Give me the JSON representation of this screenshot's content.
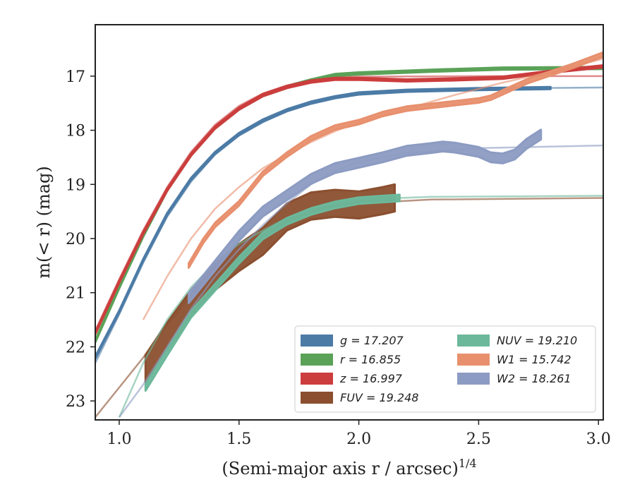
{
  "chart_data": {
    "type": "line",
    "xlabel": "(Semi-major axis r / arcsec)",
    "xlabel_exponent": "1/4",
    "ylabel": "m(< r) (mag)",
    "xlim": [
      0.9,
      3.02
    ],
    "ylim": [
      23.35,
      16.05
    ],
    "y_inverted": true,
    "xticks": [
      "1.0",
      "1.5",
      "2.0",
      "2.5",
      "3.0"
    ],
    "yticks": [
      "17",
      "18",
      "19",
      "20",
      "21",
      "22",
      "23"
    ],
    "grid": false,
    "legend_placement": "lower-right",
    "legend": [
      {
        "label": "g = 17.207",
        "color": "#4c7ba6"
      },
      {
        "label": "r = 16.855",
        "color": "#5aa258"
      },
      {
        "label": "z = 16.997",
        "color": "#cc3d3d"
      },
      {
        "label": "FUV = 19.248",
        "color": "#8b4f2f"
      },
      {
        "label": "NUV = 19.210",
        "color": "#6cb89b"
      },
      {
        "label": "W1 = 15.742",
        "color": "#e8906e"
      },
      {
        "label": "W2 = 18.261",
        "color": "#8c9bc2"
      }
    ],
    "series": [
      {
        "name": "g = 17.207",
        "color": "#4c7ba6",
        "model": [
          [
            0.9,
            22.3
          ],
          [
            1.0,
            21.4
          ],
          [
            1.1,
            20.45
          ],
          [
            1.2,
            19.6
          ],
          [
            1.3,
            18.95
          ],
          [
            1.4,
            18.45
          ],
          [
            1.5,
            18.1
          ],
          [
            1.6,
            17.85
          ],
          [
            1.7,
            17.65
          ],
          [
            1.8,
            17.5
          ],
          [
            1.9,
            17.4
          ],
          [
            2.0,
            17.33
          ],
          [
            2.2,
            17.27
          ],
          [
            2.5,
            17.23
          ],
          [
            3.02,
            17.21
          ]
        ],
        "data": [
          [
            0.9,
            22.2
          ],
          [
            1.0,
            21.35
          ],
          [
            1.1,
            20.4
          ],
          [
            1.2,
            19.55
          ],
          [
            1.3,
            18.9
          ],
          [
            1.4,
            18.42
          ],
          [
            1.5,
            18.07
          ],
          [
            1.6,
            17.82
          ],
          [
            1.7,
            17.63
          ],
          [
            1.8,
            17.49
          ],
          [
            1.9,
            17.39
          ],
          [
            2.0,
            17.32
          ],
          [
            2.2,
            17.27
          ],
          [
            2.5,
            17.24
          ],
          [
            2.8,
            17.22
          ]
        ],
        "band": 0.04
      },
      {
        "name": "r = 16.855",
        "color": "#5aa258",
        "model": [
          [
            0.9,
            21.9
          ],
          [
            1.0,
            20.9
          ],
          [
            1.1,
            19.95
          ],
          [
            1.2,
            19.1
          ],
          [
            1.3,
            18.45
          ],
          [
            1.4,
            17.95
          ],
          [
            1.5,
            17.6
          ],
          [
            1.6,
            17.35
          ],
          [
            1.7,
            17.2
          ],
          [
            1.8,
            17.08
          ],
          [
            1.9,
            17.0
          ],
          [
            2.0,
            16.95
          ],
          [
            2.3,
            16.9
          ],
          [
            2.6,
            16.87
          ],
          [
            3.02,
            16.85
          ]
        ],
        "data": [
          [
            0.9,
            21.9
          ],
          [
            1.0,
            20.9
          ],
          [
            1.1,
            19.95
          ],
          [
            1.2,
            19.1
          ],
          [
            1.3,
            18.45
          ],
          [
            1.4,
            17.95
          ],
          [
            1.5,
            17.6
          ],
          [
            1.6,
            17.35
          ],
          [
            1.7,
            17.2
          ],
          [
            1.8,
            17.08
          ],
          [
            1.9,
            16.98
          ],
          [
            2.0,
            16.95
          ],
          [
            2.3,
            16.9
          ],
          [
            2.6,
            16.86
          ],
          [
            3.02,
            16.85
          ]
        ],
        "band": 0.04
      },
      {
        "name": "z = 16.997",
        "color": "#cc3d3d",
        "model": [
          [
            0.9,
            21.7
          ],
          [
            1.0,
            20.75
          ],
          [
            1.1,
            19.85
          ],
          [
            1.2,
            19.05
          ],
          [
            1.3,
            18.4
          ],
          [
            1.4,
            17.9
          ],
          [
            1.5,
            17.55
          ],
          [
            1.6,
            17.32
          ],
          [
            1.7,
            17.17
          ],
          [
            1.8,
            17.08
          ],
          [
            1.9,
            17.03
          ],
          [
            2.0,
            17.01
          ],
          [
            2.5,
            17.0
          ],
          [
            3.02,
            17.0
          ]
        ],
        "data": [
          [
            0.9,
            21.75
          ],
          [
            1.0,
            20.8
          ],
          [
            1.1,
            19.9
          ],
          [
            1.2,
            19.1
          ],
          [
            1.3,
            18.45
          ],
          [
            1.4,
            17.95
          ],
          [
            1.5,
            17.6
          ],
          [
            1.6,
            17.35
          ],
          [
            1.7,
            17.2
          ],
          [
            1.8,
            17.1
          ],
          [
            1.9,
            17.05
          ],
          [
            2.0,
            17.05
          ],
          [
            2.2,
            17.08
          ],
          [
            2.4,
            17.06
          ],
          [
            2.6,
            17.03
          ],
          [
            2.8,
            16.92
          ],
          [
            3.02,
            16.82
          ]
        ],
        "band": 0.04
      },
      {
        "name": "FUV = 19.248",
        "color": "#8b4f2f",
        "model": [
          [
            0.9,
            23.3
          ],
          [
            1.0,
            22.75
          ],
          [
            1.1,
            22.2
          ],
          [
            1.2,
            21.6
          ],
          [
            1.3,
            21.05
          ],
          [
            1.4,
            20.6
          ],
          [
            1.5,
            20.25
          ],
          [
            1.6,
            19.95
          ],
          [
            1.7,
            19.7
          ],
          [
            1.8,
            19.55
          ],
          [
            1.9,
            19.43
          ],
          [
            2.0,
            19.35
          ],
          [
            2.3,
            19.28
          ],
          [
            3.02,
            19.25
          ]
        ],
        "data": [
          [
            1.11,
            22.4
          ],
          [
            1.2,
            21.8
          ],
          [
            1.3,
            21.2
          ],
          [
            1.4,
            20.7
          ],
          [
            1.5,
            20.35
          ],
          [
            1.6,
            20.05
          ],
          [
            1.7,
            19.6
          ],
          [
            1.8,
            19.4
          ],
          [
            1.9,
            19.35
          ],
          [
            2.0,
            19.38
          ],
          [
            2.1,
            19.3
          ],
          [
            2.15,
            19.25
          ]
        ],
        "band": 0.5
      },
      {
        "name": "NUV = 19.210",
        "color": "#6cb89b",
        "model": [
          [
            1.0,
            23.3
          ],
          [
            1.1,
            22.3
          ],
          [
            1.2,
            21.5
          ],
          [
            1.3,
            20.9
          ],
          [
            1.4,
            20.45
          ],
          [
            1.5,
            20.1
          ],
          [
            1.6,
            19.85
          ],
          [
            1.7,
            19.62
          ],
          [
            1.8,
            19.45
          ],
          [
            1.9,
            19.35
          ],
          [
            2.0,
            19.28
          ],
          [
            2.3,
            19.23
          ],
          [
            3.02,
            19.21
          ]
        ],
        "data": [
          [
            1.11,
            22.75
          ],
          [
            1.2,
            22.1
          ],
          [
            1.3,
            21.4
          ],
          [
            1.4,
            20.9
          ],
          [
            1.5,
            20.4
          ],
          [
            1.6,
            19.95
          ],
          [
            1.7,
            19.68
          ],
          [
            1.8,
            19.5
          ],
          [
            1.9,
            19.38
          ],
          [
            2.0,
            19.3
          ],
          [
            2.1,
            19.27
          ],
          [
            2.17,
            19.25
          ]
        ],
        "band": 0.12
      },
      {
        "name": "W1 = 15.742",
        "color": "#e8906e",
        "model": [
          [
            1.1,
            21.5
          ],
          [
            1.2,
            20.7
          ],
          [
            1.3,
            20.0
          ],
          [
            1.4,
            19.45
          ],
          [
            1.5,
            19.05
          ],
          [
            1.6,
            18.7
          ],
          [
            1.7,
            18.45
          ],
          [
            1.8,
            18.22
          ],
          [
            1.9,
            18.02
          ],
          [
            2.0,
            17.85
          ],
          [
            2.2,
            17.6
          ],
          [
            2.4,
            17.35
          ],
          [
            2.6,
            17.12
          ],
          [
            2.8,
            16.92
          ],
          [
            3.02,
            16.68
          ]
        ],
        "data": [
          [
            1.29,
            20.5
          ],
          [
            1.35,
            20.05
          ],
          [
            1.4,
            19.75
          ],
          [
            1.5,
            19.35
          ],
          [
            1.6,
            18.8
          ],
          [
            1.7,
            18.45
          ],
          [
            1.8,
            18.15
          ],
          [
            1.9,
            17.95
          ],
          [
            2.0,
            17.85
          ],
          [
            2.1,
            17.7
          ],
          [
            2.2,
            17.6
          ],
          [
            2.3,
            17.55
          ],
          [
            2.4,
            17.5
          ],
          [
            2.5,
            17.45
          ],
          [
            2.55,
            17.4
          ],
          [
            2.6,
            17.3
          ],
          [
            2.7,
            17.1
          ],
          [
            2.8,
            16.95
          ],
          [
            2.9,
            16.8
          ],
          [
            3.02,
            16.6
          ]
        ],
        "band": 0.08
      },
      {
        "name": "W2 = 18.261",
        "color": "#8c9bc2",
        "model": [
          [
            1.0,
            23.3
          ],
          [
            1.1,
            22.7
          ],
          [
            1.2,
            22.0
          ],
          [
            1.3,
            21.3
          ],
          [
            1.4,
            20.7
          ],
          [
            1.5,
            20.2
          ],
          [
            1.6,
            19.75
          ],
          [
            1.7,
            19.35
          ],
          [
            1.8,
            19.0
          ],
          [
            1.9,
            18.75
          ],
          [
            2.0,
            18.58
          ],
          [
            2.2,
            18.42
          ],
          [
            2.5,
            18.33
          ],
          [
            3.02,
            18.28
          ]
        ],
        "data": [
          [
            1.29,
            21.1
          ],
          [
            1.4,
            20.5
          ],
          [
            1.5,
            19.95
          ],
          [
            1.6,
            19.5
          ],
          [
            1.7,
            19.2
          ],
          [
            1.8,
            18.9
          ],
          [
            1.9,
            18.7
          ],
          [
            2.0,
            18.6
          ],
          [
            2.1,
            18.5
          ],
          [
            2.2,
            18.38
          ],
          [
            2.3,
            18.33
          ],
          [
            2.35,
            18.3
          ],
          [
            2.4,
            18.32
          ],
          [
            2.5,
            18.4
          ],
          [
            2.55,
            18.5
          ],
          [
            2.6,
            18.52
          ],
          [
            2.65,
            18.45
          ],
          [
            2.7,
            18.25
          ],
          [
            2.76,
            18.08
          ]
        ],
        "band": 0.18
      }
    ]
  }
}
